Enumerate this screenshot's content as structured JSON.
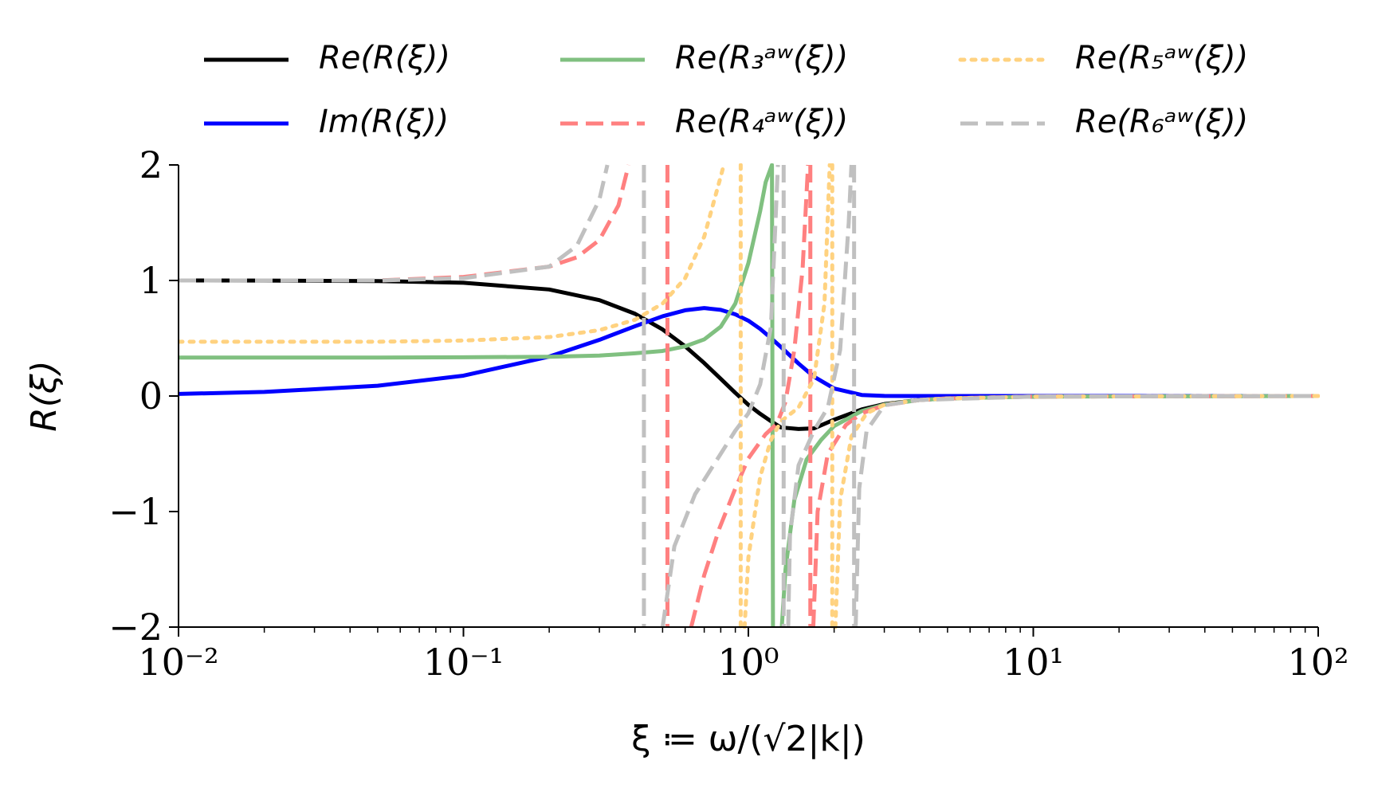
{
  "chart_data": {
    "type": "line",
    "xlabel": "ξ ≔ ω/(√2|k|)",
    "ylabel": "R(ξ)",
    "xscale": "log",
    "xlim": [
      0.01,
      100
    ],
    "ylim": [
      -2,
      2
    ],
    "xticks": [
      {
        "value": 0.01,
        "label": "10⁻²"
      },
      {
        "value": 0.1,
        "label": "10⁻¹"
      },
      {
        "value": 1,
        "label": "10⁰"
      },
      {
        "value": 10,
        "label": "10¹"
      },
      {
        "value": 100,
        "label": "10²"
      }
    ],
    "xminorticks": [
      0.02,
      0.03,
      0.04,
      0.05,
      0.06,
      0.07,
      0.08,
      0.09,
      0.2,
      0.3,
      0.4,
      0.5,
      0.6,
      0.7,
      0.8,
      0.9,
      2,
      3,
      4,
      5,
      6,
      7,
      8,
      9,
      20,
      30,
      40,
      50,
      60,
      70,
      80,
      90
    ],
    "yticks": [
      {
        "value": -2,
        "label": "−2"
      },
      {
        "value": -1,
        "label": "−1"
      },
      0,
      1,
      2
    ],
    "legend": "top-outside",
    "series": [
      {
        "name": "Re(R(ξ))",
        "color": "#000000",
        "linestyle": "solid",
        "x": [
          0.01,
          0.02,
          0.05,
          0.1,
          0.2,
          0.3,
          0.4,
          0.5,
          0.6,
          0.7,
          0.8,
          0.9,
          1.0,
          1.1,
          1.2,
          1.3,
          1.5,
          1.7,
          2,
          2.5,
          3,
          4,
          5,
          7,
          10,
          20,
          50,
          100
        ],
        "values": [
          1.0,
          0.999,
          0.995,
          0.98,
          0.922,
          0.83,
          0.712,
          0.576,
          0.43,
          0.285,
          0.149,
          0.027,
          -0.076,
          -0.154,
          -0.218,
          -0.272,
          -0.285,
          -0.28,
          -0.205,
          -0.116,
          -0.07,
          -0.034,
          -0.021,
          -0.01,
          -0.005,
          -0.001,
          0,
          0
        ]
      },
      {
        "name": "Im(R(ξ))",
        "color": "#0000ff",
        "linestyle": "solid",
        "x": [
          0.01,
          0.02,
          0.05,
          0.1,
          0.2,
          0.3,
          0.4,
          0.5,
          0.6,
          0.7,
          0.8,
          0.9,
          1.0,
          1.1,
          1.2,
          1.3,
          1.5,
          1.7,
          2,
          2.5,
          3,
          4,
          5,
          7,
          10,
          20,
          50,
          100
        ],
        "values": [
          0.018,
          0.035,
          0.089,
          0.176,
          0.341,
          0.486,
          0.604,
          0.69,
          0.742,
          0.761,
          0.746,
          0.707,
          0.652,
          0.581,
          0.502,
          0.425,
          0.281,
          0.167,
          0.065,
          0.009,
          0.001,
          0,
          0,
          0,
          0,
          0,
          0,
          0
        ]
      },
      {
        "name": "Re(R₃ᵃʷ(ξ))",
        "color": "#80c080",
        "linestyle": "solid",
        "x": [
          0.01,
          0.05,
          0.1,
          0.2,
          0.3,
          0.4,
          0.5,
          0.6,
          0.7,
          0.8,
          0.9,
          1.0,
          1.1,
          1.15,
          1.21,
          1.22,
          1.3,
          1.31,
          1.35,
          1.45,
          1.6,
          1.8,
          2.0,
          2.5,
          3,
          4,
          5,
          10,
          100
        ],
        "values": [
          0.333,
          0.333,
          0.335,
          0.34,
          0.35,
          0.37,
          0.39,
          0.43,
          0.49,
          0.6,
          0.8,
          1.15,
          1.6,
          1.85,
          2,
          -2,
          null,
          -2,
          -1.5,
          -0.9,
          -0.55,
          -0.38,
          -0.26,
          -0.13,
          -0.075,
          -0.034,
          -0.021,
          -0.005,
          0
        ]
      },
      {
        "name": "Re(R₄ᵃʷ(ξ))",
        "color": "#ff8080",
        "linestyle": "dashed",
        "x": [
          0.01,
          0.05,
          0.1,
          0.2,
          0.25,
          0.3,
          0.35,
          0.38,
          0.5,
          0.52,
          0.52,
          0.6,
          0.63,
          0.7,
          0.79,
          0.9,
          1.0,
          1.15,
          1.26,
          1.35,
          1.45,
          1.55,
          1.62,
          1.64,
          1.65,
          1.65,
          1.68,
          1.69,
          1.75,
          1.9,
          2.2,
          2.5,
          3,
          4,
          5,
          10,
          100
        ],
        "values": [
          1.0,
          1.0,
          1.03,
          1.12,
          1.2,
          1.35,
          1.65,
          2,
          null,
          2,
          -2,
          null,
          -2,
          -1.55,
          -1.15,
          -0.8,
          -0.54,
          -0.33,
          -0.24,
          -0.05,
          0.4,
          1.1,
          2,
          null,
          2,
          -2,
          null,
          -2,
          -1.0,
          -0.5,
          -0.25,
          -0.15,
          -0.08,
          -0.034,
          -0.021,
          -0.005,
          0
        ]
      },
      {
        "name": "Re(R₅ᵃʷ(ξ))",
        "color": "#ffd280",
        "linestyle": "dotted",
        "x": [
          0.01,
          0.05,
          0.1,
          0.2,
          0.3,
          0.4,
          0.5,
          0.6,
          0.7,
          0.8,
          0.82,
          0.9,
          0.94,
          0.94,
          0.96,
          0.97,
          1.0,
          1.1,
          1.2,
          1.3,
          1.5,
          1.7,
          1.85,
          1.93,
          1.95,
          1.97,
          1.97,
          2.0,
          2.02,
          2.1,
          2.3,
          2.6,
          3,
          4,
          5,
          10,
          100
        ],
        "values": [
          0.47,
          0.47,
          0.48,
          0.51,
          0.57,
          0.66,
          0.8,
          1.02,
          1.38,
          1.9,
          2,
          null,
          2,
          -2,
          null,
          -2,
          -1.4,
          -0.7,
          -0.38,
          -0.22,
          -0.1,
          0.15,
          0.8,
          2,
          null,
          2,
          -2,
          null,
          -2,
          -0.9,
          -0.35,
          -0.15,
          -0.075,
          -0.034,
          -0.021,
          -0.005,
          0
        ]
      },
      {
        "name": "Re(R₆ᵃʷ(ξ))",
        "color": "#c0c0c0",
        "linestyle": "dashed",
        "x": [
          0.01,
          0.05,
          0.1,
          0.2,
          0.25,
          0.3,
          0.32,
          0.4,
          0.43,
          0.43,
          0.47,
          0.5,
          0.55,
          0.65,
          0.8,
          0.9,
          1.0,
          1.1,
          1.2,
          1.27,
          1.3,
          1.33,
          1.33,
          1.36,
          1.38,
          1.4,
          1.5,
          1.7,
          1.9,
          2.1,
          2.25,
          2.3,
          2.32,
          2.35,
          2.35,
          2.37,
          2.38,
          2.45,
          2.6,
          3,
          4,
          10,
          100
        ],
        "values": [
          1.0,
          1.0,
          1.02,
          1.12,
          1.3,
          1.7,
          2,
          null,
          2,
          -2,
          null,
          -2,
          -1.3,
          -0.85,
          -0.5,
          -0.3,
          -0.15,
          0.1,
          0.6,
          2,
          null,
          2,
          -2,
          null,
          -2,
          -1.2,
          -0.6,
          -0.3,
          -0.1,
          0.4,
          1.5,
          2,
          null,
          2,
          -2,
          null,
          -2,
          -0.8,
          -0.3,
          -0.08,
          -0.034,
          -0.005,
          0
        ]
      }
    ]
  }
}
